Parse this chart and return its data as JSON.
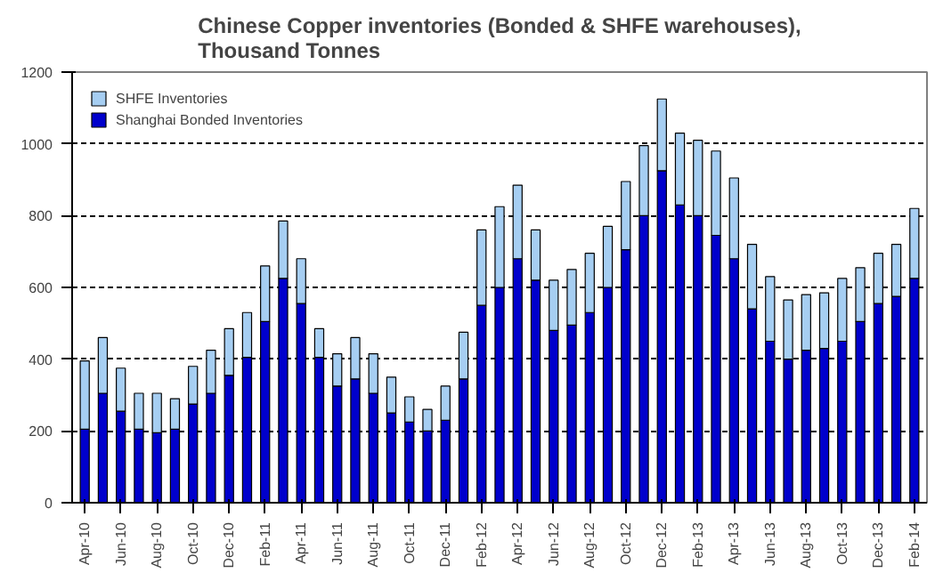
{
  "chart_data": {
    "type": "bar",
    "title": "Chinese Copper inventories (Bonded & SHFE warehouses),\nThousand Tonnes",
    "stacked": true,
    "categories": [
      "Apr-10",
      null,
      "Jun-10",
      null,
      "Aug-10",
      null,
      "Oct-10",
      null,
      "Dec-10",
      null,
      "Feb-11",
      null,
      "Apr-11",
      null,
      "Jun-11",
      null,
      "Aug-11",
      null,
      "Oct-11",
      null,
      "Dec-11",
      null,
      "Feb-12",
      null,
      "Apr-12",
      null,
      "Jun-12",
      null,
      "Aug-12",
      null,
      "Oct-12",
      null,
      "Dec-12",
      null,
      "Feb-13",
      null,
      "Apr-13",
      null,
      "Jun-13",
      null,
      "Aug-13",
      null,
      "Oct-13",
      null,
      "Dec-13",
      null,
      "Feb-14"
    ],
    "series": [
      {
        "name": "Shanghai Bonded Inventories",
        "color": "#0000cc",
        "values": [
          205,
          305,
          255,
          205,
          195,
          205,
          275,
          305,
          355,
          405,
          505,
          625,
          555,
          405,
          325,
          345,
          305,
          250,
          225,
          200,
          230,
          345,
          550,
          600,
          680,
          620,
          480,
          495,
          530,
          600,
          705,
          800,
          925,
          830,
          800,
          745,
          680,
          540,
          450,
          400,
          425,
          430,
          450,
          505,
          555,
          575,
          625
        ]
      },
      {
        "name": "SHFE Inventories",
        "color": "#a6cef2",
        "values": [
          190,
          155,
          120,
          100,
          110,
          85,
          105,
          120,
          130,
          125,
          155,
          160,
          125,
          80,
          90,
          115,
          110,
          100,
          70,
          60,
          95,
          130,
          210,
          225,
          205,
          140,
          140,
          155,
          165,
          170,
          190,
          195,
          200,
          200,
          210,
          235,
          225,
          180,
          180,
          165,
          155,
          155,
          175,
          150,
          140,
          145,
          195
        ]
      }
    ],
    "ylim": [
      0,
      1200
    ],
    "yticks": [
      0,
      200,
      400,
      600,
      800,
      1000,
      1200
    ],
    "grid": "y",
    "legend": "top left"
  }
}
